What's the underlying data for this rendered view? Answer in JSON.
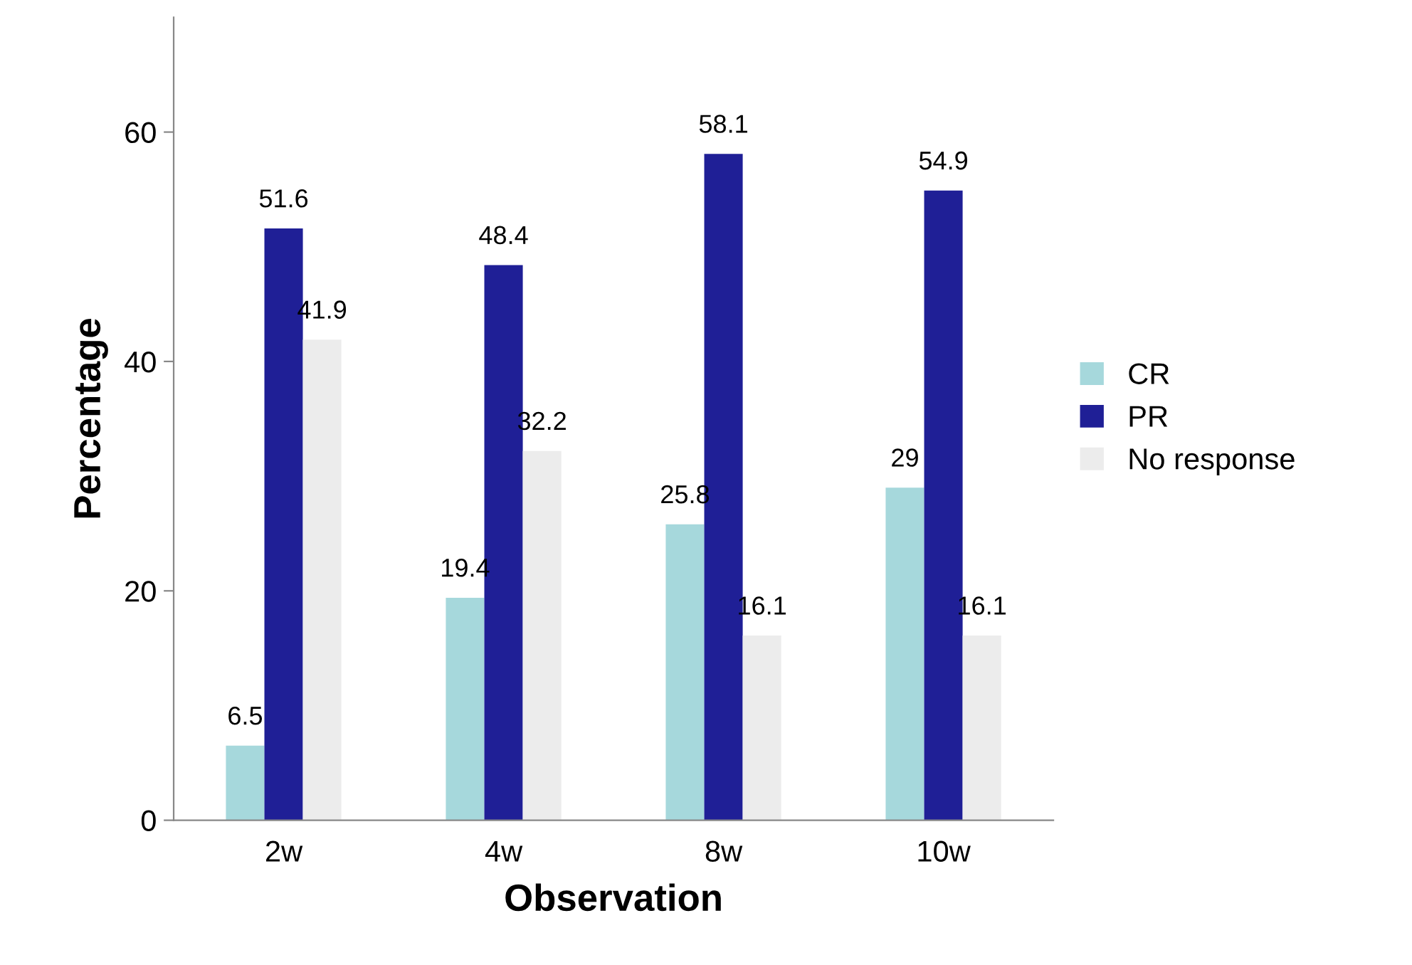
{
  "chart_data": {
    "type": "bar",
    "xlabel": "Observation",
    "ylabel": "Percentage",
    "categories": [
      "2w",
      "4w",
      "8w",
      "10w"
    ],
    "series": [
      {
        "name": "CR",
        "color": "#a6d8dc",
        "values": [
          6.5,
          19.4,
          25.8,
          29
        ]
      },
      {
        "name": "PR",
        "color": "#1f1f96",
        "values": [
          51.6,
          48.4,
          58.1,
          54.9
        ]
      },
      {
        "name": "No response",
        "color": "#ececec",
        "values": [
          41.9,
          32.2,
          16.1,
          16.1
        ]
      }
    ],
    "ylim": [
      0,
      70
    ],
    "yticks": [
      0,
      20,
      40,
      60
    ],
    "grid": false,
    "legend": "right",
    "data_labels": true
  }
}
